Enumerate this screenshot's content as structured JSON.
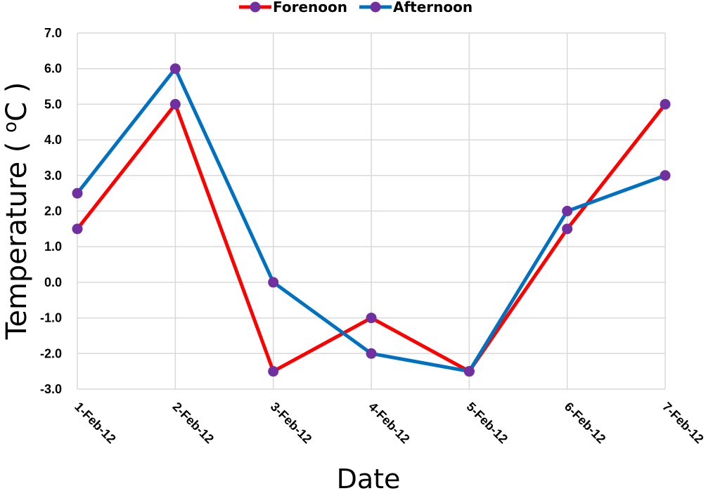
{
  "chart_data": {
    "type": "line",
    "title": "",
    "xlabel": "Date",
    "ylabel": "Temperature ( oC )",
    "ylabel_parts": {
      "before": "Temperature ( ",
      "degree": "o",
      "after": "C )"
    },
    "categories": [
      "1-Feb-12",
      "2-Feb-12",
      "3-Feb-12",
      "4-Feb-12",
      "5-Feb-12",
      "6-Feb-12",
      "7-Feb-12"
    ],
    "series": [
      {
        "name": "Forenoon",
        "color": "#ff0000",
        "values": [
          1.5,
          5.0,
          -2.5,
          -1.0,
          -2.5,
          1.5,
          5.0
        ]
      },
      {
        "name": "Afternoon",
        "color": "#0070c0",
        "values": [
          2.5,
          6.0,
          0.0,
          -2.0,
          -2.5,
          2.0,
          3.0
        ]
      }
    ],
    "marker_color": "#7030a0",
    "ylim": [
      -3.0,
      7.0
    ],
    "yticks": [
      "-3.0",
      "-2.0",
      "-1.0",
      "0.0",
      "1.0",
      "2.0",
      "3.0",
      "4.0",
      "5.0",
      "6.0",
      "7.0"
    ],
    "grid": true,
    "legend_position": "top-center"
  }
}
